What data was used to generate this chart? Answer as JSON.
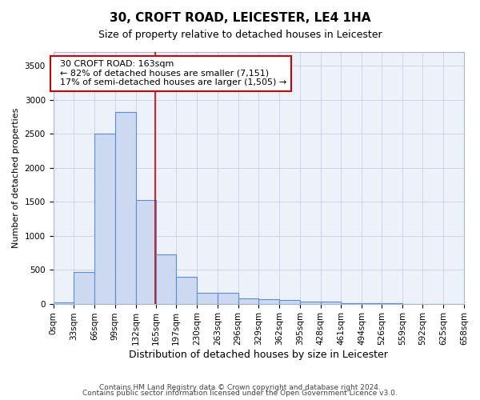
{
  "title": "30, CROFT ROAD, LEICESTER, LE4 1HA",
  "subtitle": "Size of property relative to detached houses in Leicester",
  "xlabel": "Distribution of detached houses by size in Leicester",
  "ylabel": "Number of detached properties",
  "footer_line1": "Contains HM Land Registry data © Crown copyright and database right 2024.",
  "footer_line2": "Contains public sector information licensed under the Open Government Licence v3.0.",
  "annotation_line1": "30 CROFT ROAD: 163sqm",
  "annotation_line2": "← 82% of detached houses are smaller (7,151)",
  "annotation_line3": "17% of semi-detached houses are larger (1,505) →",
  "property_sqm": 163,
  "bin_edges": [
    0,
    33,
    66,
    99,
    132,
    165,
    197,
    230,
    263,
    296,
    329,
    362,
    395,
    428,
    461,
    494,
    526,
    559,
    592,
    625,
    658
  ],
  "bar_values": [
    20,
    470,
    2500,
    2820,
    1520,
    730,
    390,
    155,
    155,
    80,
    60,
    55,
    35,
    30,
    5,
    3,
    2,
    1,
    0,
    0
  ],
  "bar_color": "#ccd9f0",
  "bar_edge_color": "#5b8fd4",
  "vline_color": "#cc0000",
  "annotation_box_edgecolor": "#cc0000",
  "ylim": [
    0,
    3700
  ],
  "yticks": [
    0,
    500,
    1000,
    1500,
    2000,
    2500,
    3000,
    3500
  ],
  "grid_color": "#c8d0e8",
  "bg_color": "#edf1fa",
  "title_fontsize": 11,
  "subtitle_fontsize": 9,
  "ylabel_fontsize": 8,
  "xlabel_fontsize": 9,
  "tick_fontsize": 7.5,
  "footer_fontsize": 6.5
}
